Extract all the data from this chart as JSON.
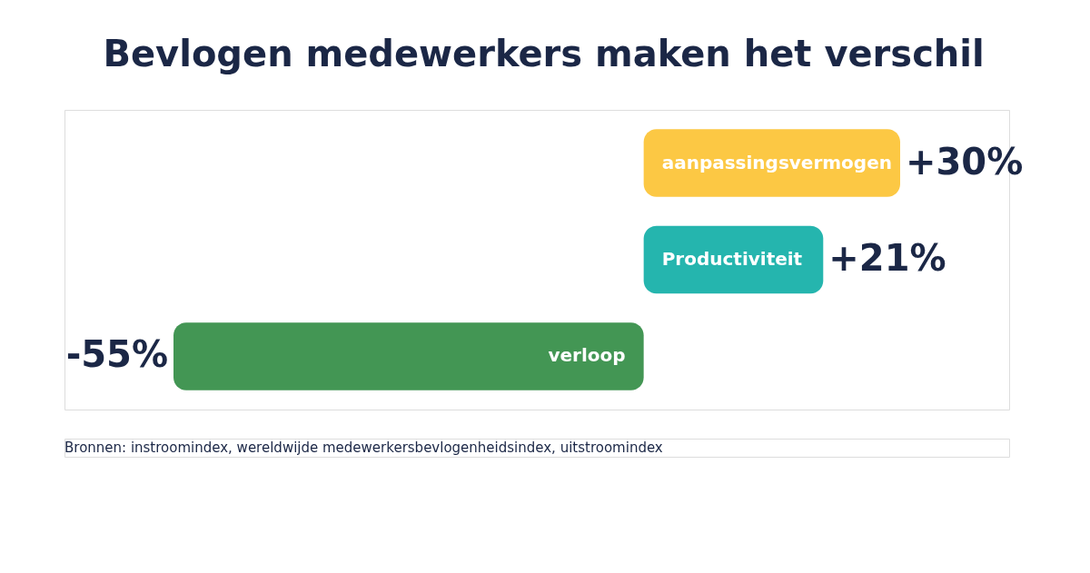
{
  "chart_data": {
    "type": "bar",
    "orientation": "horizontal",
    "title": "Bevlogen medewerkers maken het verschil",
    "categories": [
      "aanpassingsvermogen",
      "Productiviteit",
      "verloop"
    ],
    "values": [
      30,
      21,
      -55
    ],
    "colors": [
      "#fcc844",
      "#25b5ae",
      "#439654"
    ],
    "value_labels": [
      "+30%",
      "+21%",
      "-55%"
    ],
    "annotations": [
      "Bronnen: instroomindex, wereldwijde medewerkersbevlogenheidsindex, uitstroomindex"
    ]
  }
}
